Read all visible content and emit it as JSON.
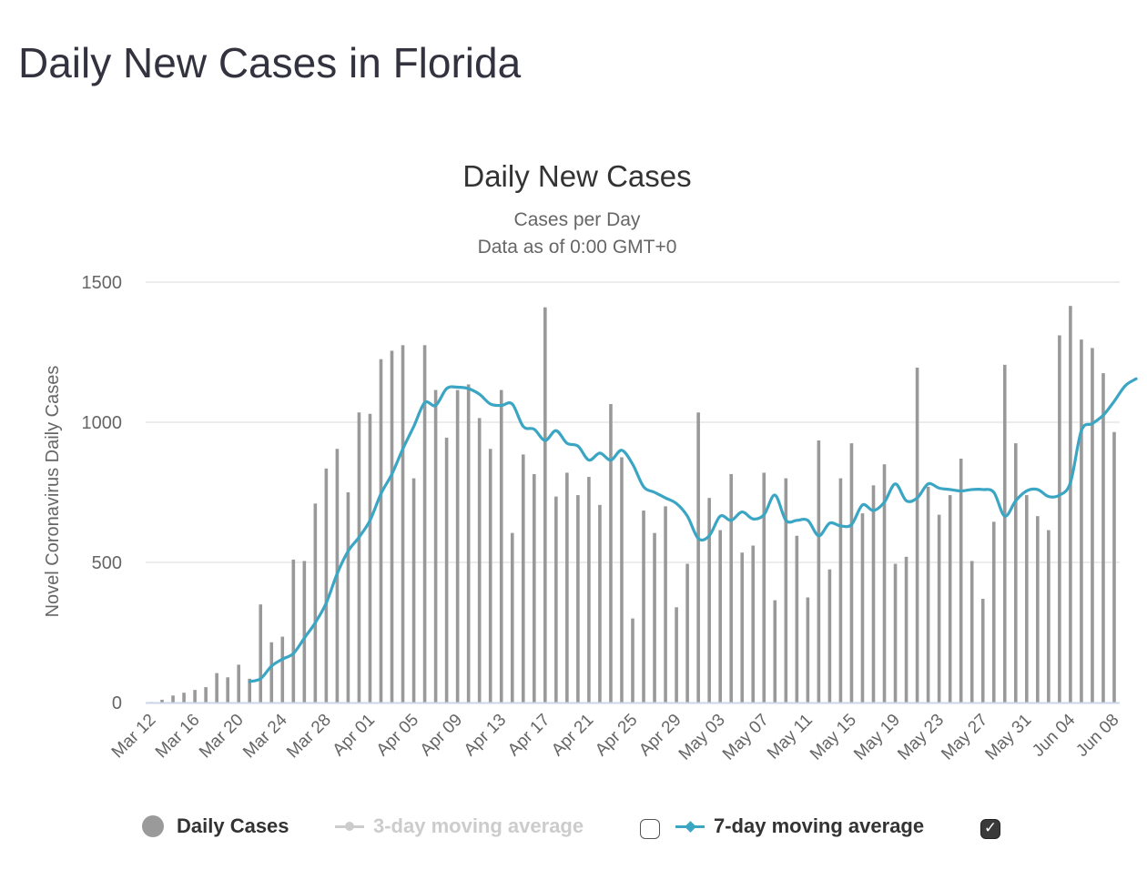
{
  "page": {
    "title": "Daily New Cases in Florida"
  },
  "colors": {
    "bars": "#999999",
    "line7": "#3ba5c4",
    "line3": "#cccccc",
    "grid": "#e6e6e6",
    "axis": "#ccd6eb",
    "text": "#666666",
    "title": "#333333"
  },
  "chart_data": {
    "type": "bar",
    "title": "Daily New Cases",
    "subtitle_lines": [
      "Cases per Day",
      "Data as of 0:00 GMT+0"
    ],
    "ylabel": "Novel Coronavirus Daily Cases",
    "xlabel": "",
    "ylim": [
      0,
      1500
    ],
    "y_ticks": [
      "0",
      "500",
      "1000",
      "1500"
    ],
    "y_tick_values": [
      0,
      500,
      1000,
      1500
    ],
    "x_tick_labels": [
      "Mar 12",
      "Mar 16",
      "Mar 20",
      "Mar 24",
      "Mar 28",
      "Apr 01",
      "Apr 05",
      "Apr 09",
      "Apr 13",
      "Apr 17",
      "Apr 21",
      "Apr 25",
      "Apr 29",
      "May 03",
      "May 07",
      "May 11",
      "May 15",
      "May 19",
      "May 23",
      "May 27",
      "May 31",
      "Jun 04",
      "Jun 08"
    ],
    "x_tick_every": 4,
    "grid": true,
    "series": [
      {
        "name": "Daily Cases",
        "type": "bar",
        "values": [
          2,
          10,
          25,
          35,
          45,
          55,
          105,
          90,
          135,
          85,
          350,
          215,
          235,
          510,
          505,
          710,
          835,
          905,
          750,
          1035,
          1030,
          1225,
          1255,
          1275,
          800,
          1275,
          1115,
          945,
          1115,
          1135,
          1015,
          905,
          1115,
          605,
          885,
          815,
          1410,
          735,
          820,
          740,
          805,
          705,
          1065,
          875,
          300,
          685,
          605,
          700,
          340,
          495,
          1035,
          730,
          615,
          815,
          535,
          560,
          820,
          365,
          800,
          595,
          375,
          935,
          475,
          800,
          925,
          675,
          775,
          850,
          495,
          520,
          1195,
          770,
          670,
          740,
          870,
          505,
          370,
          645,
          1205,
          925,
          740,
          665,
          615,
          1310,
          1415,
          1295,
          1265,
          1175,
          965
        ]
      },
      {
        "name": "3-day moving average",
        "type": "line",
        "visible": false,
        "values": []
      },
      {
        "name": "7-day moving average",
        "type": "line",
        "visible": true,
        "start_index": 9,
        "values": [
          75,
          85,
          130,
          155,
          175,
          230,
          285,
          355,
          460,
          540,
          590,
          650,
          745,
          815,
          905,
          985,
          1070,
          1060,
          1120,
          1125,
          1120,
          1100,
          1065,
          1060,
          1065,
          985,
          975,
          935,
          970,
          925,
          915,
          865,
          890,
          865,
          900,
          850,
          770,
          750,
          730,
          710,
          665,
          585,
          595,
          665,
          650,
          680,
          655,
          670,
          740,
          650,
          650,
          650,
          595,
          640,
          630,
          635,
          705,
          685,
          715,
          780,
          720,
          730,
          780,
          765,
          760,
          755,
          760,
          760,
          750,
          665,
          720,
          755,
          760,
          735,
          740,
          785,
          970,
          995,
          1025,
          1075,
          1130,
          1155
        ]
      }
    ]
  },
  "legend": {
    "items": [
      {
        "label": "Daily Cases",
        "active": true
      },
      {
        "label": "3-day moving average",
        "active": false,
        "checked": false
      },
      {
        "label": "7-day moving average",
        "active": true,
        "checked": true
      }
    ],
    "check_glyph": "✓"
  }
}
